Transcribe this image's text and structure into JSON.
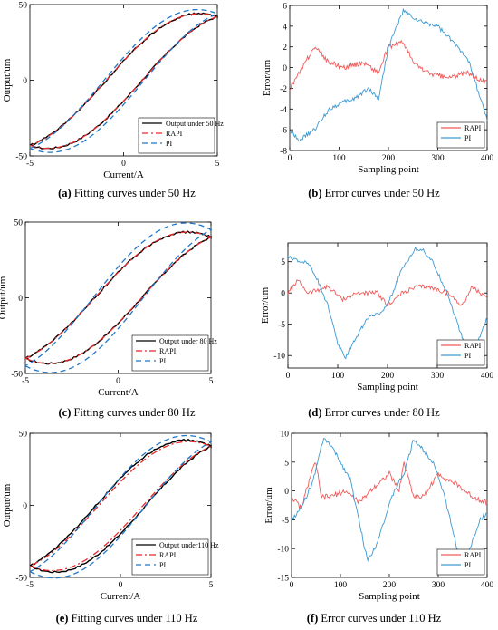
{
  "captions": [
    {
      "label": "(a)",
      "text": "Fitting curves under 50 Hz"
    },
    {
      "label": "(b)",
      "text": "Error curves under 50 Hz"
    },
    {
      "label": "(c)",
      "text": "Fitting curves under 80 Hz"
    },
    {
      "label": "(d)",
      "text": "Error curves under 80 Hz"
    },
    {
      "label": "(e)",
      "text": "Fitting curves under 110 Hz"
    },
    {
      "label": "(f)",
      "text": "Error curves under 110 Hz"
    }
  ],
  "colors": {
    "measured": "#000000",
    "rapi": "#e8282b",
    "pi": "#1f77c8",
    "rapi_err": "#f05a5a",
    "pi_err": "#3c9ad2"
  },
  "chart_data": [
    {
      "id": "a",
      "type": "line",
      "xlabel": "Current/A",
      "ylabel": "Output/um",
      "xlim": [
        -5,
        5
      ],
      "ylim": [
        -50,
        50
      ],
      "xticks": [
        "-5",
        "0",
        "5"
      ],
      "yticks": [
        "-50",
        "0",
        "50"
      ],
      "legend": {
        "placement": "bottom-right",
        "entries": [
          "Output under 50 Hz",
          "RAPI",
          "PI"
        ]
      },
      "series": [
        {
          "name": "Output under 50 Hz",
          "style": "solid",
          "x_start": -5,
          "x_end": 5,
          "y_start": -43,
          "y_end": 42,
          "loop_width": 2.2
        },
        {
          "name": "RAPI",
          "style": "dashdot",
          "x_start": -5,
          "x_end": 5,
          "y_start": -43,
          "y_end": 42,
          "loop_width": 2.2
        },
        {
          "name": "PI",
          "style": "dashed",
          "x_start": -5,
          "x_end": 5,
          "y_start": -45,
          "y_end": 44,
          "loop_width": 2.6
        }
      ]
    },
    {
      "id": "b",
      "type": "line",
      "xlabel": "Sampling point",
      "ylabel": "Error/um",
      "xlim": [
        0,
        400
      ],
      "ylim": [
        -8,
        6
      ],
      "xticks": [
        "0",
        "100",
        "200",
        "300",
        "400"
      ],
      "yticks": [
        "-8",
        "-6",
        "-4",
        "-2",
        "0",
        "2",
        "4",
        "6"
      ],
      "legend": {
        "placement": "bottom-right",
        "entries": [
          "RAPI",
          "PI"
        ]
      },
      "series": [
        {
          "name": "RAPI",
          "x": [
            0,
            20,
            50,
            80,
            110,
            150,
            180,
            200,
            230,
            250,
            280,
            320,
            360,
            400
          ],
          "y": [
            -2,
            -0.5,
            2,
            0.5,
            0,
            0.5,
            -0.5,
            2,
            2.5,
            0.5,
            -0.5,
            -1,
            -0.5,
            -1.5
          ]
        },
        {
          "name": "PI",
          "x": [
            0,
            20,
            50,
            80,
            100,
            130,
            160,
            180,
            200,
            230,
            260,
            300,
            340,
            360,
            380,
            400
          ],
          "y": [
            -6,
            -7,
            -6,
            -4,
            -3.5,
            -3,
            -2,
            -3,
            2,
            5.5,
            4.5,
            4,
            2,
            1,
            -2,
            -5
          ]
        }
      ]
    },
    {
      "id": "c",
      "type": "line",
      "xlabel": "Current/A",
      "ylabel": "Output/um",
      "xlim": [
        -5,
        5
      ],
      "ylim": [
        -50,
        50
      ],
      "xticks": [
        "-5",
        "0",
        "5"
      ],
      "yticks": [
        "-50",
        "0",
        "50"
      ],
      "legend": {
        "placement": "bottom-right",
        "entries": [
          "Output under 80 Hz",
          "RAPI",
          "PI"
        ]
      },
      "series": [
        {
          "name": "Output under 80 Hz",
          "style": "solid",
          "x_start": -5,
          "x_end": 5,
          "y_start": -40,
          "y_end": 40,
          "loop_width": 2.8
        },
        {
          "name": "RAPI",
          "style": "dashdot",
          "x_start": -5,
          "x_end": 5,
          "y_start": -40,
          "y_end": 40,
          "loop_width": 2.8
        },
        {
          "name": "PI",
          "style": "dashed",
          "x_start": -5,
          "x_end": 5,
          "y_start": -45,
          "y_end": 45,
          "loop_width": 3.4
        }
      ]
    },
    {
      "id": "d",
      "type": "line",
      "xlabel": "Sampling point",
      "ylabel": "Error/um",
      "xlim": [
        0,
        400
      ],
      "ylim": [
        -12,
        8
      ],
      "xticks": [
        "0",
        "100",
        "200",
        "300",
        "400"
      ],
      "yticks": [
        "-10",
        "-5",
        "0",
        "5"
      ],
      "legend": {
        "placement": "bottom-right",
        "entries": [
          "RAPI",
          "PI"
        ]
      },
      "series": [
        {
          "name": "RAPI",
          "x": [
            0,
            20,
            40,
            80,
            110,
            140,
            180,
            200,
            230,
            260,
            280,
            320,
            350,
            370,
            400
          ],
          "y": [
            0,
            2,
            0,
            1,
            -1,
            0,
            0,
            -2,
            0,
            1,
            1,
            0,
            -2,
            1,
            -1
          ]
        },
        {
          "name": "PI",
          "x": [
            0,
            20,
            40,
            60,
            80,
            100,
            115,
            130,
            160,
            190,
            210,
            230,
            255,
            270,
            290,
            320,
            345,
            365,
            380,
            400
          ],
          "y": [
            6,
            5,
            5,
            2,
            -2,
            -8,
            -10.5,
            -8,
            -4,
            -3,
            0,
            4,
            7,
            7,
            5,
            0,
            -6,
            -10.5,
            -8,
            -4
          ]
        }
      ]
    },
    {
      "id": "e",
      "type": "line",
      "xlabel": "Current/A",
      "ylabel": "Output/um",
      "xlim": [
        -5,
        5
      ],
      "ylim": [
        -50,
        50
      ],
      "xticks": [
        "-5",
        "0",
        "5"
      ],
      "yticks": [
        "-50",
        "0",
        "50"
      ],
      "legend": {
        "placement": "bottom-right",
        "entries": [
          "Output under110 Hz",
          "RAPI",
          "PI"
        ]
      },
      "series": [
        {
          "name": "Output under110 Hz",
          "style": "solid",
          "x_start": -5,
          "x_end": 5,
          "y_start": -42,
          "y_end": 41,
          "loop_width": 3.2
        },
        {
          "name": "RAPI",
          "style": "dashdot",
          "x_start": -5,
          "x_end": 5,
          "y_start": -42,
          "y_end": 41,
          "loop_width": 2.8
        },
        {
          "name": "PI",
          "style": "dashed",
          "x_start": -5,
          "x_end": 5,
          "y_start": -46,
          "y_end": 44,
          "loop_width": 3.4
        }
      ]
    },
    {
      "id": "f",
      "type": "line",
      "xlabel": "Sampling point",
      "ylabel": "Error/um",
      "xlim": [
        0,
        400
      ],
      "ylim": [
        -15,
        10
      ],
      "xticks": [
        "0",
        "100",
        "200",
        "300",
        "400"
      ],
      "yticks": [
        "-15",
        "-10",
        "-5",
        "0",
        "5",
        "10"
      ],
      "legend": {
        "placement": "bottom-right",
        "entries": [
          "RAPI",
          "PI"
        ]
      },
      "series": [
        {
          "name": "RAPI",
          "x": [
            0,
            20,
            40,
            50,
            60,
            80,
            110,
            140,
            160,
            200,
            220,
            230,
            250,
            270,
            300,
            340,
            370,
            400
          ],
          "y": [
            -1,
            -3,
            3,
            5,
            -1,
            -1,
            0,
            -2,
            0,
            3,
            0,
            5,
            -1,
            -1,
            3,
            1,
            -1,
            -2
          ]
        },
        {
          "name": "PI",
          "x": [
            0,
            20,
            45,
            65,
            80,
            100,
            120,
            140,
            155,
            170,
            190,
            210,
            230,
            250,
            270,
            290,
            310,
            330,
            345,
            365,
            385,
            400
          ],
          "y": [
            -5,
            -3,
            2,
            9,
            8,
            5,
            2,
            -6,
            -12,
            -10,
            -5,
            0,
            3,
            9,
            7,
            5,
            0,
            -7,
            -12,
            -10,
            -5,
            -4
          ]
        }
      ]
    }
  ]
}
